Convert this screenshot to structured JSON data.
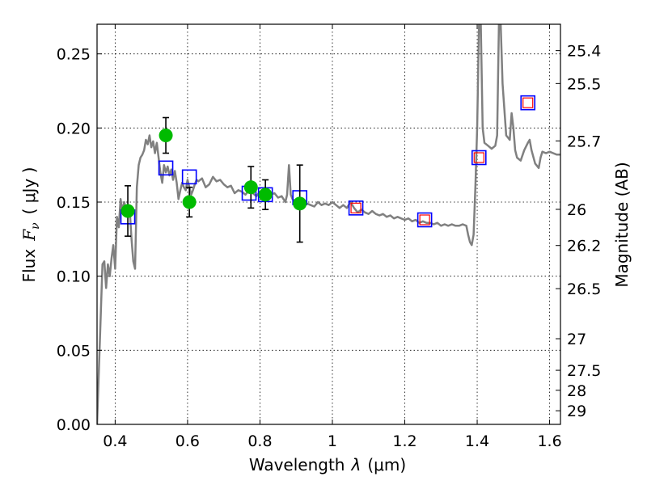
{
  "chart_data": {
    "type": "scatter",
    "xlabel_prefix": "Wavelength",
    "xlabel_symbol": "λ",
    "xlabel_unit": "(μm)",
    "ylabel_prefix": "Flux",
    "ylabel_symbol": "F",
    "ylabel_subscript": "ν",
    "ylabel_unit": "( μJy )",
    "y2label": "Magnitude (AB)",
    "xlim": [
      0.35,
      1.63
    ],
    "ylim": [
      0,
      0.27
    ],
    "x_ticks": [
      0.4,
      0.6,
      0.8,
      1.0,
      1.2,
      1.4,
      1.6
    ],
    "x_tick_labels": [
      "0.4",
      "0.6",
      "0.8",
      "1",
      "1.2",
      "1.4",
      "1.6"
    ],
    "y_ticks": [
      0.0,
      0.05,
      0.1,
      0.15,
      0.2,
      0.25
    ],
    "y_tick_labels": [
      "0.00",
      "0.05",
      "0.10",
      "0.15",
      "0.20",
      "0.25"
    ],
    "mag_ticks": [
      {
        "label": "25.4",
        "flux": 0.2522
      },
      {
        "label": "25.5",
        "flux": 0.23
      },
      {
        "label": "25.7",
        "flux": 0.1913
      },
      {
        "label": "26",
        "flux": 0.1451
      },
      {
        "label": "26.2",
        "flux": 0.1207
      },
      {
        "label": "26.5",
        "flux": 0.0916
      },
      {
        "label": "27",
        "flux": 0.0578
      },
      {
        "label": "27.5",
        "flux": 0.0365
      },
      {
        "label": "28",
        "flux": 0.023
      },
      {
        "label": "29",
        "flux": 0.0092
      }
    ],
    "grid": true,
    "series": [
      {
        "name": "model spectrum",
        "style": "line",
        "color": "#808080",
        "points": [
          [
            0.35,
            0.0
          ],
          [
            0.365,
            0.108
          ],
          [
            0.37,
            0.11
          ],
          [
            0.375,
            0.092
          ],
          [
            0.38,
            0.108
          ],
          [
            0.385,
            0.1
          ],
          [
            0.39,
            0.112
          ],
          [
            0.395,
            0.121
          ],
          [
            0.4,
            0.105
          ],
          [
            0.405,
            0.14
          ],
          [
            0.41,
            0.133
          ],
          [
            0.415,
            0.152
          ],
          [
            0.42,
            0.144
          ],
          [
            0.425,
            0.15
          ],
          [
            0.43,
            0.145
          ],
          [
            0.435,
            0.144
          ],
          [
            0.44,
            0.146
          ],
          [
            0.445,
            0.126
          ],
          [
            0.45,
            0.11
          ],
          [
            0.455,
            0.105
          ],
          [
            0.46,
            0.16
          ],
          [
            0.465,
            0.175
          ],
          [
            0.47,
            0.18
          ],
          [
            0.475,
            0.182
          ],
          [
            0.48,
            0.185
          ],
          [
            0.485,
            0.192
          ],
          [
            0.49,
            0.189
          ],
          [
            0.495,
            0.195
          ],
          [
            0.5,
            0.187
          ],
          [
            0.505,
            0.191
          ],
          [
            0.51,
            0.183
          ],
          [
            0.515,
            0.19
          ],
          [
            0.52,
            0.18
          ],
          [
            0.525,
            0.17
          ],
          [
            0.53,
            0.163
          ],
          [
            0.535,
            0.175
          ],
          [
            0.54,
            0.17
          ],
          [
            0.545,
            0.174
          ],
          [
            0.55,
            0.168
          ],
          [
            0.555,
            0.172
          ],
          [
            0.56,
            0.165
          ],
          [
            0.565,
            0.171
          ],
          [
            0.57,
            0.163
          ],
          [
            0.575,
            0.152
          ],
          [
            0.58,
            0.158
          ],
          [
            0.585,
            0.163
          ],
          [
            0.59,
            0.16
          ],
          [
            0.595,
            0.158
          ],
          [
            0.6,
            0.165
          ],
          [
            0.605,
            0.16
          ],
          [
            0.61,
            0.155
          ],
          [
            0.615,
            0.158
          ],
          [
            0.62,
            0.162
          ],
          [
            0.625,
            0.165
          ],
          [
            0.63,
            0.164
          ],
          [
            0.64,
            0.166
          ],
          [
            0.65,
            0.16
          ],
          [
            0.66,
            0.162
          ],
          [
            0.67,
            0.167
          ],
          [
            0.68,
            0.164
          ],
          [
            0.69,
            0.165
          ],
          [
            0.7,
            0.162
          ],
          [
            0.71,
            0.16
          ],
          [
            0.72,
            0.161
          ],
          [
            0.73,
            0.156
          ],
          [
            0.74,
            0.158
          ],
          [
            0.75,
            0.157
          ],
          [
            0.76,
            0.155
          ],
          [
            0.77,
            0.158
          ],
          [
            0.78,
            0.156
          ],
          [
            0.79,
            0.154
          ],
          [
            0.8,
            0.157
          ],
          [
            0.81,
            0.155
          ],
          [
            0.82,
            0.153
          ],
          [
            0.83,
            0.155
          ],
          [
            0.84,
            0.156
          ],
          [
            0.85,
            0.153
          ],
          [
            0.86,
            0.154
          ],
          [
            0.87,
            0.15
          ],
          [
            0.875,
            0.155
          ],
          [
            0.88,
            0.175
          ],
          [
            0.885,
            0.155
          ],
          [
            0.89,
            0.152
          ],
          [
            0.9,
            0.15
          ],
          [
            0.91,
            0.148
          ],
          [
            0.92,
            0.147
          ],
          [
            0.93,
            0.149
          ],
          [
            0.94,
            0.148
          ],
          [
            0.95,
            0.147
          ],
          [
            0.96,
            0.15
          ],
          [
            0.97,
            0.148
          ],
          [
            0.98,
            0.149
          ],
          [
            0.99,
            0.148
          ],
          [
            1.0,
            0.15
          ],
          [
            1.01,
            0.148
          ],
          [
            1.02,
            0.146
          ],
          [
            1.03,
            0.148
          ],
          [
            1.04,
            0.146
          ],
          [
            1.05,
            0.15
          ],
          [
            1.06,
            0.146
          ],
          [
            1.07,
            0.143
          ],
          [
            1.08,
            0.145
          ],
          [
            1.09,
            0.143
          ],
          [
            1.1,
            0.142
          ],
          [
            1.11,
            0.144
          ],
          [
            1.12,
            0.142
          ],
          [
            1.13,
            0.141
          ],
          [
            1.14,
            0.142
          ],
          [
            1.15,
            0.14
          ],
          [
            1.16,
            0.141
          ],
          [
            1.17,
            0.139
          ],
          [
            1.18,
            0.14
          ],
          [
            1.19,
            0.139
          ],
          [
            1.2,
            0.138
          ],
          [
            1.21,
            0.139
          ],
          [
            1.22,
            0.137
          ],
          [
            1.23,
            0.138
          ],
          [
            1.24,
            0.136
          ],
          [
            1.25,
            0.137
          ],
          [
            1.26,
            0.136
          ],
          [
            1.27,
            0.136
          ],
          [
            1.28,
            0.135
          ],
          [
            1.29,
            0.136
          ],
          [
            1.3,
            0.134
          ],
          [
            1.31,
            0.135
          ],
          [
            1.32,
            0.134
          ],
          [
            1.33,
            0.135
          ],
          [
            1.34,
            0.134
          ],
          [
            1.35,
            0.134
          ],
          [
            1.36,
            0.135
          ],
          [
            1.37,
            0.134
          ],
          [
            1.375,
            0.128
          ],
          [
            1.38,
            0.123
          ],
          [
            1.385,
            0.121
          ],
          [
            1.39,
            0.128
          ],
          [
            1.395,
            0.16
          ],
          [
            1.4,
            0.2
          ],
          [
            1.405,
            0.27
          ],
          [
            1.41,
            0.27
          ],
          [
            1.415,
            0.2
          ],
          [
            1.42,
            0.19
          ],
          [
            1.43,
            0.188
          ],
          [
            1.44,
            0.186
          ],
          [
            1.45,
            0.188
          ],
          [
            1.455,
            0.195
          ],
          [
            1.46,
            0.27
          ],
          [
            1.465,
            0.27
          ],
          [
            1.47,
            0.23
          ],
          [
            1.48,
            0.195
          ],
          [
            1.49,
            0.192
          ],
          [
            1.495,
            0.21
          ],
          [
            1.5,
            0.2
          ],
          [
            1.505,
            0.185
          ],
          [
            1.51,
            0.18
          ],
          [
            1.52,
            0.178
          ],
          [
            1.53,
            0.185
          ],
          [
            1.54,
            0.19
          ],
          [
            1.545,
            0.192
          ],
          [
            1.55,
            0.185
          ],
          [
            1.56,
            0.176
          ],
          [
            1.57,
            0.173
          ],
          [
            1.575,
            0.18
          ],
          [
            1.58,
            0.184
          ],
          [
            1.59,
            0.183
          ],
          [
            1.6,
            0.184
          ],
          [
            1.61,
            0.183
          ],
          [
            1.62,
            0.182
          ],
          [
            1.63,
            0.182
          ]
        ]
      },
      {
        "name": "model photometry (blue squares)",
        "style": "square",
        "color": "#0000ff",
        "points": [
          [
            0.435,
            0.14
          ],
          [
            0.54,
            0.173
          ],
          [
            0.605,
            0.167
          ],
          [
            0.77,
            0.156
          ],
          [
            0.815,
            0.155
          ],
          [
            0.91,
            0.153
          ],
          [
            1.065,
            0.146
          ],
          [
            1.255,
            0.138
          ],
          [
            1.405,
            0.18
          ],
          [
            1.54,
            0.217
          ]
        ]
      },
      {
        "name": "observed photometry (red squares)",
        "style": "square-small",
        "color": "#ff0000",
        "points": [
          [
            1.065,
            0.146
          ],
          [
            1.255,
            0.138
          ],
          [
            1.405,
            0.18
          ],
          [
            1.54,
            0.217
          ]
        ]
      },
      {
        "name": "observed photometry (green circles)",
        "style": "circle-errorbar",
        "color": "#00bb00",
        "points": [
          {
            "x": 0.435,
            "y": 0.144,
            "err": 0.017
          },
          {
            "x": 0.54,
            "y": 0.195,
            "err": 0.012
          },
          {
            "x": 0.605,
            "y": 0.15,
            "err": 0.01
          },
          {
            "x": 0.775,
            "y": 0.16,
            "err": 0.014
          },
          {
            "x": 0.815,
            "y": 0.155,
            "err": 0.01
          },
          {
            "x": 0.91,
            "y": 0.149,
            "err": 0.026
          }
        ]
      }
    ]
  }
}
